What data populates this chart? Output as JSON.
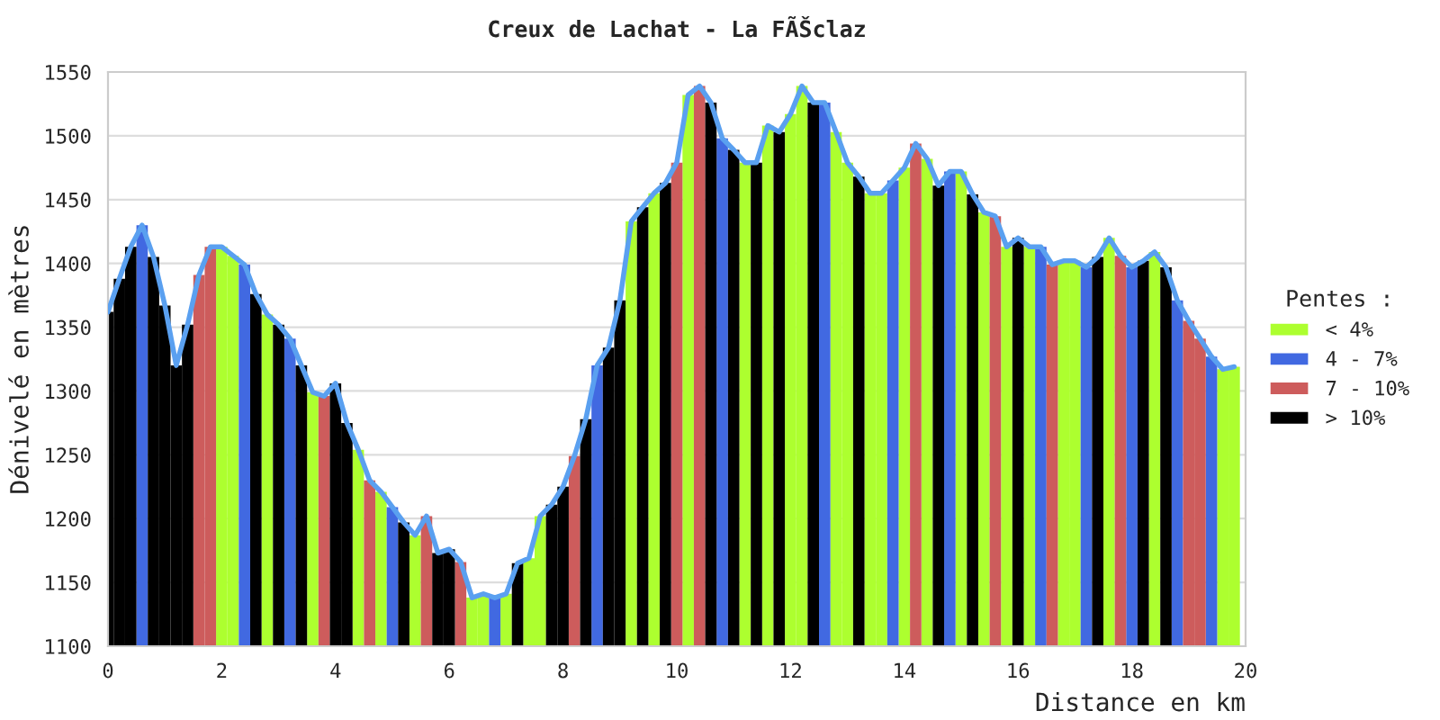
{
  "chart_data": {
    "type": "bar",
    "title": "Creux de Lachat - La FÃŠclaz",
    "xlabel": "Distance en km",
    "ylabel": "Dénivelé en mètres",
    "legend_title": "Pentes :",
    "xlim": [
      0,
      20
    ],
    "xticks": [
      0,
      2,
      4,
      6,
      8,
      10,
      12,
      14,
      16,
      18,
      20
    ],
    "ylim": [
      1100,
      1550
    ],
    "yticks": [
      1100,
      1150,
      1200,
      1250,
      1300,
      1350,
      1400,
      1450,
      1500,
      1550
    ],
    "grid": "y",
    "legend": "right",
    "series": [
      {
        "name": "< 4%",
        "color": "#adff2f",
        "x": [
          2.0,
          2.2,
          2.8,
          3.6,
          4.4,
          4.8,
          5.4,
          6.4,
          6.6,
          7.0,
          7.4,
          7.6,
          9.2,
          9.6,
          10.2,
          11.2,
          11.6,
          12.0,
          12.2,
          12.8,
          13.0,
          13.4,
          13.6,
          14.0,
          14.4,
          15.0,
          15.4,
          15.8,
          16.2,
          16.8,
          17.0,
          17.6,
          18.4,
          19.6,
          19.8
        ],
        "values": [
          1413,
          1406,
          1360,
          1299,
          1254,
          1221,
          1187,
          1138,
          1141,
          1141,
          1169,
          1202,
          1433,
          1455,
          1532,
          1479,
          1508,
          1517,
          1539,
          1503,
          1479,
          1455,
          1455,
          1475,
          1482,
          1472,
          1440,
          1413,
          1413,
          1402,
          1402,
          1420,
          1409,
          1317,
          1319
        ]
      },
      {
        "name": "4 - 7%",
        "color": "#4169e1",
        "x": [
          0.6,
          2.4,
          3.2,
          5.0,
          6.8,
          8.6,
          10.8,
          12.6,
          13.8,
          14.8,
          16.4,
          17.2,
          18.0,
          18.8,
          19.4
        ],
        "values": [
          1430,
          1399,
          1341,
          1209,
          1138,
          1320,
          1498,
          1526,
          1465,
          1472,
          1413,
          1397,
          1397,
          1371,
          1327
        ]
      },
      {
        "name": "7 - 10%",
        "color": "#cd5c5c",
        "x": [
          1.6,
          1.8,
          3.8,
          4.6,
          5.6,
          6.2,
          8.2,
          10.0,
          10.4,
          14.2,
          15.6,
          16.6,
          17.8,
          19.0,
          19.2
        ],
        "values": [
          1391,
          1413,
          1296,
          1230,
          1202,
          1166,
          1249,
          1479,
          1539,
          1494,
          1437,
          1399,
          1406,
          1355,
          1341
        ]
      },
      {
        "name": "> 10%",
        "color": "#000000",
        "x": [
          0.0,
          0.2,
          0.4,
          0.8,
          1.0,
          1.2,
          1.4,
          2.6,
          3.0,
          3.4,
          4.0,
          4.2,
          5.2,
          5.8,
          6.0,
          7.2,
          7.8,
          8.0,
          8.4,
          8.8,
          9.0,
          9.4,
          9.8,
          10.6,
          11.0,
          11.4,
          11.8,
          12.4,
          13.2,
          14.6,
          15.2,
          16.0,
          17.4,
          18.2,
          18.6
        ],
        "values": [
          1362,
          1388,
          1413,
          1405,
          1367,
          1320,
          1352,
          1376,
          1352,
          1320,
          1306,
          1275,
          1197,
          1173,
          1176,
          1165,
          1211,
          1225,
          1278,
          1334,
          1371,
          1444,
          1463,
          1526,
          1489,
          1479,
          1503,
          1526,
          1468,
          1461,
          1454,
          1420,
          1405,
          1402,
          1397
        ]
      },
      {
        "type": "line",
        "color": "#5aa0f0",
        "x": [
          0.0,
          0.2,
          0.4,
          0.6,
          0.8,
          1.0,
          1.2,
          1.4,
          1.6,
          1.8,
          2.0,
          2.2,
          2.4,
          2.6,
          2.8,
          3.0,
          3.2,
          3.4,
          3.6,
          3.8,
          4.0,
          4.2,
          4.4,
          4.6,
          4.8,
          5.0,
          5.2,
          5.4,
          5.6,
          5.8,
          6.0,
          6.2,
          6.4,
          6.6,
          6.8,
          7.0,
          7.2,
          7.4,
          7.6,
          7.8,
          8.0,
          8.2,
          8.4,
          8.6,
          8.8,
          9.0,
          9.2,
          9.4,
          9.6,
          9.8,
          10.0,
          10.2,
          10.4,
          10.6,
          10.8,
          11.0,
          11.2,
          11.4,
          11.6,
          11.8,
          12.0,
          12.2,
          12.4,
          12.6,
          12.8,
          13.0,
          13.2,
          13.4,
          13.6,
          13.8,
          14.0,
          14.2,
          14.4,
          14.6,
          14.8,
          15.0,
          15.2,
          15.4,
          15.6,
          15.8,
          16.0,
          16.2,
          16.4,
          16.6,
          16.8,
          17.0,
          17.2,
          17.4,
          17.6,
          17.8,
          18.0,
          18.2,
          18.4,
          18.6,
          18.8,
          19.0,
          19.2,
          19.4,
          19.6,
          19.8
        ],
        "values": [
          1362,
          1388,
          1413,
          1430,
          1405,
          1367,
          1320,
          1352,
          1391,
          1413,
          1413,
          1406,
          1399,
          1376,
          1360,
          1352,
          1341,
          1320,
          1299,
          1296,
          1306,
          1275,
          1254,
          1230,
          1221,
          1209,
          1197,
          1187,
          1202,
          1173,
          1176,
          1166,
          1138,
          1141,
          1138,
          1141,
          1165,
          1169,
          1202,
          1211,
          1225,
          1249,
          1278,
          1320,
          1334,
          1371,
          1433,
          1444,
          1455,
          1463,
          1479,
          1532,
          1539,
          1526,
          1498,
          1489,
          1479,
          1479,
          1508,
          1503,
          1517,
          1539,
          1526,
          1526,
          1503,
          1479,
          1468,
          1455,
          1455,
          1465,
          1475,
          1494,
          1482,
          1461,
          1472,
          1472,
          1454,
          1440,
          1437,
          1413,
          1420,
          1413,
          1413,
          1399,
          1402,
          1402,
          1397,
          1405,
          1420,
          1406,
          1397,
          1402,
          1409,
          1397,
          1371,
          1355,
          1341,
          1327,
          1317,
          1319
        ]
      }
    ]
  }
}
